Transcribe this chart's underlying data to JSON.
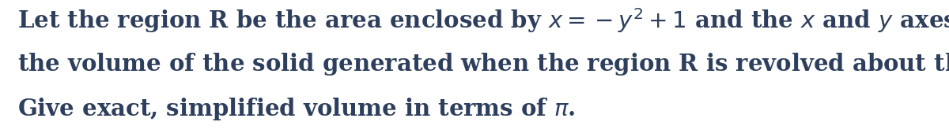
{
  "background_color": "#ffffff",
  "text_color": "#2d3f5c",
  "line1": "Let the region R be the area enclosed by $x = -y^2 + 1$ and the $x$ and $y$ axes. Find",
  "line2": "the volume of the solid generated when the region R is revolved about the $y$-axis.",
  "line3": "Give exact, simplified volume in terms of $\\pi$.",
  "font_size": 21,
  "font_family": "DejaVu Serif",
  "font_weight": "bold",
  "figwidth": 12.0,
  "figheight": 1.69,
  "dpi": 100
}
